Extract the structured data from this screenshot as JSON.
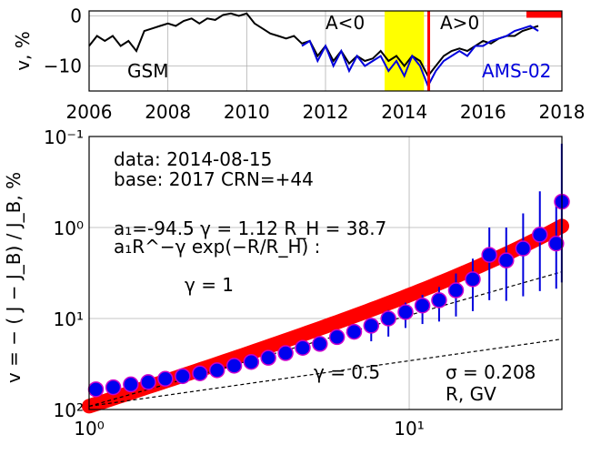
{
  "chart_data": [
    {
      "type": "line",
      "ylabel": "v, %",
      "xlim": [
        2006,
        2018
      ],
      "ylim": [
        -15,
        1
      ],
      "grid": true,
      "x_ticks": [
        "2006",
        "2008",
        "2010",
        "2012",
        "2014",
        "2016",
        "2018"
      ],
      "y_ticks": [
        "0",
        "−10"
      ],
      "labels": {
        "gsm": "GSM",
        "ams": "AMS-02",
        "a_neg": "A<0",
        "a_pos": "A>0"
      },
      "colors": {
        "gsm": "#000000",
        "ams": "#0000dd",
        "reversal_band": "#ffff00",
        "marker": "#ff0000"
      },
      "reversal_band": [
        2013.5,
        2014.5
      ],
      "current_date": 2014.62,
      "base_marker": [
        2017.1,
        2018
      ],
      "series": [
        {
          "name": "GSM",
          "x": [
            2006.0,
            2006.2,
            2006.4,
            2006.6,
            2006.8,
            2007.0,
            2007.2,
            2007.4,
            2007.6,
            2007.8,
            2008.0,
            2008.2,
            2008.4,
            2008.6,
            2008.8,
            2009.0,
            2009.2,
            2009.4,
            2009.6,
            2009.8,
            2010.0,
            2010.2,
            2010.4,
            2010.6,
            2010.8,
            2011.0,
            2011.2,
            2011.4,
            2011.6,
            2011.8,
            2012.0,
            2012.2,
            2012.4,
            2012.6,
            2012.8,
            2013.0,
            2013.2,
            2013.4,
            2013.6,
            2013.8,
            2014.0,
            2014.2,
            2014.4,
            2014.6,
            2014.8,
            2015.0,
            2015.2,
            2015.4,
            2015.6,
            2015.8,
            2016.0,
            2016.2,
            2016.4,
            2016.6,
            2016.8,
            2017.0,
            2017.2,
            2017.4
          ],
          "values": [
            -6,
            -4,
            -5,
            -4,
            -6,
            -5,
            -7,
            -3,
            -2.5,
            -2,
            -1.5,
            -2,
            -1,
            -0.5,
            -1.5,
            -0.5,
            -0.8,
            0.2,
            0.5,
            0,
            0.5,
            -1.5,
            -2.5,
            -3.5,
            -4,
            -4.5,
            -4,
            -5.5,
            -5,
            -8,
            -6,
            -9,
            -7,
            -9.5,
            -8,
            -9,
            -8.5,
            -7,
            -9,
            -8,
            -10,
            -8,
            -9,
            -12,
            -10,
            -8,
            -7,
            -6.5,
            -7,
            -6,
            -5,
            -5.5,
            -4.5,
            -4,
            -4,
            -3,
            -2.5,
            -2
          ]
        },
        {
          "name": "AMS-02",
          "x": [
            2011.4,
            2011.6,
            2011.8,
            2012.0,
            2012.2,
            2012.4,
            2012.6,
            2012.8,
            2013.0,
            2013.2,
            2013.4,
            2013.6,
            2013.8,
            2014.0,
            2014.2,
            2014.4,
            2014.6,
            2014.8,
            2015.0,
            2015.2,
            2015.4,
            2015.6,
            2015.8,
            2016.0,
            2016.2,
            2016.4,
            2016.6,
            2016.8,
            2017.0,
            2017.2,
            2017.4
          ],
          "values": [
            -6,
            -5,
            -9,
            -6,
            -10,
            -7,
            -11,
            -8,
            -10,
            -9,
            -8,
            -11,
            -9,
            -12,
            -8,
            -10,
            -14,
            -11,
            -9,
            -8,
            -7,
            -8,
            -6,
            -6,
            -5,
            -4.5,
            -4,
            -3,
            -2.5,
            -2,
            -3
          ]
        }
      ]
    },
    {
      "type": "scatter",
      "ylabel": "v = − ( J − J_B) / J_B, %",
      "xlabel_text": "R, GV",
      "x_log": true,
      "y_log": true,
      "y_inverted": true,
      "xlim": [
        1,
        30
      ],
      "ylim": [
        0.1,
        100
      ],
      "grid": true,
      "x_ticks": [
        "10⁰",
        "10¹"
      ],
      "y_ticks": [
        "10⁻¹",
        "10⁰",
        "10¹",
        "10²"
      ],
      "annotations": {
        "data_line": "data: 2014-08-15",
        "base_line": "base: 2017   CRN=+44",
        "params_line": "a₁=-94.5  γ = 1.12  R_H = 38.7",
        "formula_line": "a₁R^−γ exp(−R/R_H) :",
        "gamma1": "γ = 1",
        "gamma05": "γ = 0.5",
        "sigma": "σ = 0.208"
      },
      "colors": {
        "fit": "#ff0000",
        "marker_fill": "#0000ee",
        "marker_edge": "#cc00cc",
        "error_bar": "#0000dd",
        "ref_line": "#000000"
      },
      "fit": {
        "a1": -94.5,
        "gamma": 1.12,
        "R_H": 38.7
      },
      "ref_lines": [
        {
          "gamma": 1
        },
        {
          "gamma": 0.5
        }
      ],
      "points": [
        {
          "R": 1.05,
          "v": 60,
          "err_lo": 0,
          "err_hi": 0
        },
        {
          "R": 1.19,
          "v": 57,
          "err_lo": 0,
          "err_hi": 0
        },
        {
          "R": 1.35,
          "v": 53,
          "err_lo": 0,
          "err_hi": 0
        },
        {
          "R": 1.53,
          "v": 50,
          "err_lo": 0,
          "err_hi": 0
        },
        {
          "R": 1.73,
          "v": 46,
          "err_lo": 0,
          "err_hi": 0
        },
        {
          "R": 1.96,
          "v": 43,
          "err_lo": 0,
          "err_hi": 0
        },
        {
          "R": 2.22,
          "v": 40,
          "err_lo": 0,
          "err_hi": 0
        },
        {
          "R": 2.51,
          "v": 37,
          "err_lo": 0,
          "err_hi": 0
        },
        {
          "R": 2.84,
          "v": 33,
          "err_lo": 0,
          "err_hi": 0
        },
        {
          "R": 3.21,
          "v": 30,
          "err_lo": 0,
          "err_hi": 0
        },
        {
          "R": 3.63,
          "v": 27,
          "err_lo": 0,
          "err_hi": 0
        },
        {
          "R": 4.11,
          "v": 24,
          "err_lo": 0,
          "err_hi": 0
        },
        {
          "R": 4.65,
          "v": 21,
          "err_lo": 0,
          "err_hi": 0
        },
        {
          "R": 5.26,
          "v": 19,
          "err_lo": 0,
          "err_hi": 0
        },
        {
          "R": 5.95,
          "v": 16,
          "err_lo": 0,
          "err_hi": 0
        },
        {
          "R": 6.73,
          "v": 14,
          "err_lo": 0,
          "err_hi": 0
        },
        {
          "R": 7.61,
          "v": 12,
          "err_lo": 2.0,
          "err_hi": 5.8
        },
        {
          "R": 8.61,
          "v": 10,
          "err_lo": 1.9,
          "err_hi": 5.8
        },
        {
          "R": 9.74,
          "v": 8.5,
          "err_lo": 1.8,
          "err_hi": 4.2
        },
        {
          "R": 11.0,
          "v": 7.2,
          "err_lo": 1.7,
          "err_hi": 4.3
        },
        {
          "R": 12.4,
          "v": 6.3,
          "err_lo": 1.8,
          "err_hi": 4.5
        },
        {
          "R": 14.0,
          "v": 4.9,
          "err_lo": 1.7,
          "err_hi": 4.6
        },
        {
          "R": 15.8,
          "v": 3.7,
          "err_lo": 1.5,
          "err_hi": 4.6
        },
        {
          "R": 17.8,
          "v": 2.0,
          "err_lo": 1.0,
          "err_hi": 4.3
        },
        {
          "R": 20.1,
          "v": 2.3,
          "err_lo": 1.3,
          "err_hi": 4.1
        },
        {
          "R": 22.7,
          "v": 1.7,
          "err_lo": 1.0,
          "err_hi": 4.0
        },
        {
          "R": 25.6,
          "v": 1.2,
          "err_lo": 0.8,
          "err_hi": 3.8
        },
        {
          "R": 28.8,
          "v": 1.5,
          "err_lo": 1.0,
          "err_hi": 3.2
        },
        {
          "R": 31.8,
          "v": 0.52,
          "err_lo": 0.4,
          "err_hi": 3.5
        }
      ]
    }
  ]
}
